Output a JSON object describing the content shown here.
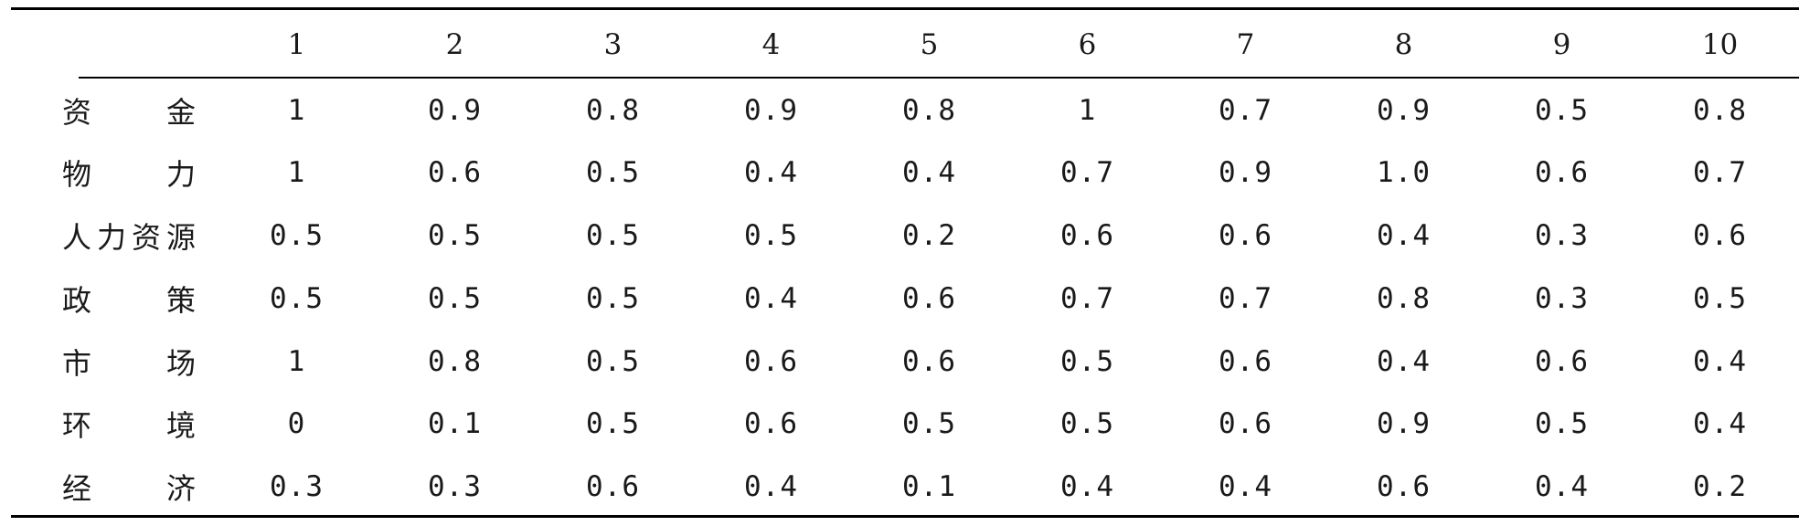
{
  "table": {
    "corner": "",
    "columns": [
      "1",
      "2",
      "3",
      "4",
      "5",
      "6",
      "7",
      "8",
      "9",
      "10"
    ],
    "rows": [
      {
        "label": "资　　金",
        "values": [
          "1",
          "0.9",
          "0.8",
          "0.9",
          "0.8",
          "1",
          "0.7",
          "0.9",
          "0.5",
          "0.8"
        ]
      },
      {
        "label": "物　　力",
        "values": [
          "1",
          "0.6",
          "0.5",
          "0.4",
          "0.4",
          "0.7",
          "0.9",
          "1.0",
          "0.6",
          "0.7"
        ]
      },
      {
        "label": "人力资源",
        "values": [
          "0.5",
          "0.5",
          "0.5",
          "0.5",
          "0.2",
          "0.6",
          "0.6",
          "0.4",
          "0.3",
          "0.6"
        ]
      },
      {
        "label": "政　　策",
        "values": [
          "0.5",
          "0.5",
          "0.5",
          "0.4",
          "0.6",
          "0.7",
          "0.7",
          "0.8",
          "0.3",
          "0.5"
        ]
      },
      {
        "label": "市　　场",
        "values": [
          "1",
          "0.8",
          "0.5",
          "0.6",
          "0.6",
          "0.5",
          "0.6",
          "0.4",
          "0.6",
          "0.4"
        ]
      },
      {
        "label": "环　　境",
        "values": [
          "0",
          "0.1",
          "0.5",
          "0.6",
          "0.5",
          "0.5",
          "0.6",
          "0.9",
          "0.5",
          "0.4"
        ]
      },
      {
        "label": "经　　济",
        "values": [
          "0.3",
          "0.3",
          "0.6",
          "0.4",
          "0.1",
          "0.4",
          "0.4",
          "0.6",
          "0.4",
          "0.2"
        ]
      }
    ]
  }
}
